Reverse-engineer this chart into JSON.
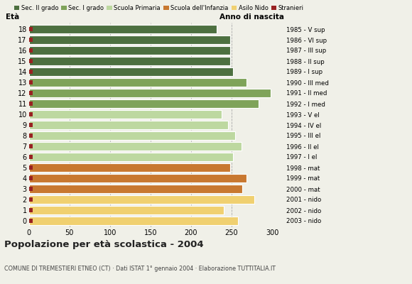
{
  "ages": [
    18,
    17,
    16,
    15,
    14,
    13,
    12,
    11,
    10,
    9,
    8,
    7,
    6,
    5,
    4,
    3,
    2,
    1,
    0
  ],
  "values": [
    232,
    248,
    248,
    248,
    252,
    268,
    298,
    283,
    238,
    246,
    254,
    262,
    252,
    248,
    268,
    263,
    278,
    240,
    258
  ],
  "right_labels": [
    "1985 - V sup",
    "1986 - VI sup",
    "1987 - III sup",
    "1988 - II sup",
    "1989 - I sup",
    "1990 - III med",
    "1991 - II med",
    "1992 - I med",
    "1993 - V el",
    "1994 - IV el",
    "1995 - III el",
    "1996 - II el",
    "1997 - I el",
    "1998 - mat",
    "1999 - mat",
    "2000 - mat",
    "2001 - nido",
    "2002 - nido",
    "2003 - nido"
  ],
  "bar_colors": [
    "#4d7040",
    "#4d7040",
    "#4d7040",
    "#4d7040",
    "#4d7040",
    "#7fa35a",
    "#7fa35a",
    "#7fa35a",
    "#bdd8a0",
    "#bdd8a0",
    "#bdd8a0",
    "#bdd8a0",
    "#bdd8a0",
    "#c87830",
    "#c87830",
    "#c87830",
    "#f0d070",
    "#f0d070",
    "#f0d070"
  ],
  "stranieri_color": "#992222",
  "legend_labels": [
    "Sec. II grado",
    "Sec. I grado",
    "Scuola Primaria",
    "Scuola dell'Infanzia",
    "Asilo Nido",
    "Stranieri"
  ],
  "legend_colors": [
    "#4d7040",
    "#7fa35a",
    "#bdd8a0",
    "#c87830",
    "#f0d070",
    "#992222"
  ],
  "title": "Popolazione per età scolastica - 2004",
  "subtitle": "COMUNE DI TREMESTIERI ETNEO (CT) · Dati ISTAT 1° gennaio 2004 · Elaborazione TUTTITALIA.IT",
  "xlabel_eta": "Età",
  "xlabel_anno": "Anno di nascita",
  "xlim": [
    0,
    315
  ],
  "xticks": [
    0,
    50,
    100,
    150,
    200,
    250,
    300
  ],
  "bg_color": "#f0f0e8",
  "bar_height": 0.82,
  "dpi": 100,
  "figsize": [
    5.8,
    4.0
  ]
}
